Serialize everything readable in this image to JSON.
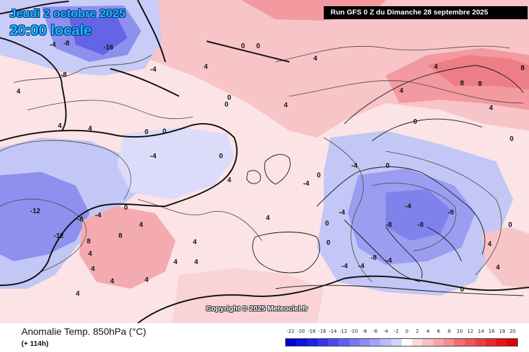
{
  "header": {
    "date": "Jeudi 2 octobre 2025",
    "time": "20:00 locale",
    "run": "Run GFS 0 Z du Dimanche 28 septembre 2025"
  },
  "copyright": "Copyright © 2025 Meteociel.fr",
  "footer": {
    "title": "Anomalie Temp. 850hPa (°C)",
    "subtitle": "(+ 114h)"
  },
  "legend": {
    "labels": [
      "-22",
      "-20",
      "-18",
      "-16",
      "-14",
      "-12",
      "-10",
      "-8",
      "-6",
      "-4",
      "-2",
      "0",
      "2",
      "4",
      "6",
      "8",
      "10",
      "12",
      "14",
      "16",
      "18",
      "20"
    ],
    "colors": [
      "#0000d8",
      "#1010e0",
      "#2020e6",
      "#3434ea",
      "#4a4aee",
      "#6060f0",
      "#7676f2",
      "#8c8cf4",
      "#a2a2f6",
      "#babaf8",
      "#d2d2fa",
      "#ffffff",
      "#fadada",
      "#f6c2c2",
      "#f4a8a8",
      "#f28e8e",
      "#f07070",
      "#ee5858",
      "#ec4040",
      "#ea2828",
      "#e81212",
      "#e00000"
    ]
  },
  "map": {
    "contour_labels": [
      {
        "text": "-16"
      },
      {
        "text": "-8"
      },
      {
        "text": "-8"
      },
      {
        "text": "-4"
      },
      {
        "text": "-4"
      },
      {
        "text": "0"
      },
      {
        "text": "0"
      },
      {
        "text": "4"
      },
      {
        "text": "4"
      },
      {
        "text": "0"
      },
      {
        "text": "0"
      },
      {
        "text": "4"
      },
      {
        "text": "4"
      },
      {
        "text": "4"
      },
      {
        "text": "0"
      },
      {
        "text": "0"
      },
      {
        "text": "-4"
      },
      {
        "text": "0"
      },
      {
        "text": "4"
      },
      {
        "text": "0"
      },
      {
        "text": "-12"
      },
      {
        "text": "-12"
      },
      {
        "text": "-8"
      },
      {
        "text": "-4"
      },
      {
        "text": "0"
      },
      {
        "text": "8"
      },
      {
        "text": "8"
      },
      {
        "text": "4"
      },
      {
        "text": "4"
      },
      {
        "text": "4"
      },
      {
        "text": "4"
      },
      {
        "text": "4"
      },
      {
        "text": "4"
      },
      {
        "text": "4"
      },
      {
        "text": "4"
      },
      {
        "text": "4"
      },
      {
        "text": "4"
      },
      {
        "text": "-4"
      },
      {
        "text": "0"
      },
      {
        "text": "-4"
      },
      {
        "text": "-4"
      },
      {
        "text": "-8"
      },
      {
        "text": "-8"
      },
      {
        "text": "-8"
      },
      {
        "text": "-8"
      },
      {
        "text": "-4"
      },
      {
        "text": "-4"
      },
      {
        "text": "-4"
      },
      {
        "text": "0"
      },
      {
        "text": "0"
      },
      {
        "text": "4"
      },
      {
        "text": "4"
      },
      {
        "text": "0"
      },
      {
        "text": "0"
      },
      {
        "text": "4"
      },
      {
        "text": "8"
      },
      {
        "text": "8"
      },
      {
        "text": "8"
      },
      {
        "text": "4"
      },
      {
        "text": "4"
      },
      {
        "text": "0"
      },
      {
        "text": "0"
      },
      {
        "text": "4"
      },
      {
        "text": "-4"
      }
    ]
  }
}
